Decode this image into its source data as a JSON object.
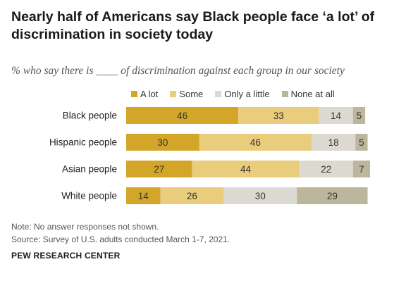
{
  "header": {
    "title": "Nearly half of Americans say Black people face ‘a lot’ of discrimination in society today",
    "subtitle": "% who say there is ____ of discrimination against each group in our society"
  },
  "footer": {
    "note": "Note: No answer responses not shown.",
    "source": "Source: Survey of U.S. adults conducted March 1-7, 2021.",
    "brand": "PEW RESEARCH CENTER"
  },
  "chart_data": {
    "type": "bar",
    "orientation": "horizontal",
    "stacked": true,
    "categories": [
      "Black people",
      "Hispanic people",
      "Asian people",
      "White people"
    ],
    "series": [
      {
        "name": "A lot",
        "color": "#d3a62a",
        "values": [
          46,
          30,
          27,
          14
        ]
      },
      {
        "name": "Some",
        "color": "#e9cc7c",
        "values": [
          33,
          46,
          44,
          26
        ]
      },
      {
        "name": "Only a little",
        "color": "#dcdad0",
        "values": [
          14,
          18,
          22,
          30
        ]
      },
      {
        "name": "None at all",
        "color": "#bcb69c",
        "values": [
          5,
          5,
          7,
          29
        ]
      }
    ],
    "xlim": [
      0,
      100
    ],
    "grid": false,
    "legend_position": "top"
  }
}
